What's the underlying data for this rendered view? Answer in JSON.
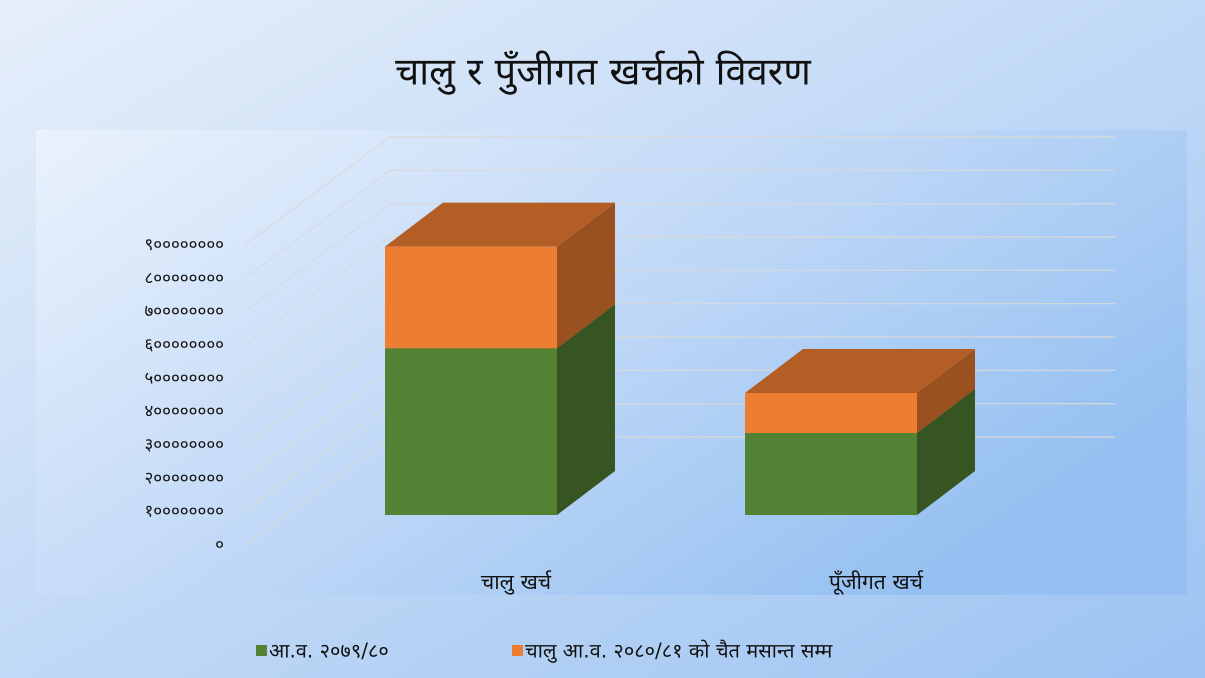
{
  "chart_data": {
    "type": "bar3d_stacked",
    "title": "चालु र पुँजीगत खर्चको विवरण",
    "categories": [
      "चालु खर्च",
      "पूँजीगत खर्च"
    ],
    "series": [
      {
        "name": "आ.व. २०७९/८०",
        "color": "#548235",
        "values": [
          500000000,
          246000000
        ]
      },
      {
        "name": "चालु आ.व. २०८०/८१ को चैत मसान्त सम्म",
        "color": "#ed7d31",
        "values": [
          305000000,
          120000000
        ]
      }
    ],
    "ylim": [
      0,
      900000000
    ],
    "yticks": [
      {
        "value": 0,
        "label": "०"
      },
      {
        "value": 100000000,
        "label": "१००००००००"
      },
      {
        "value": 200000000,
        "label": "२००००००००"
      },
      {
        "value": 300000000,
        "label": "३००००००००"
      },
      {
        "value": 400000000,
        "label": "४००००००००"
      },
      {
        "value": 500000000,
        "label": "५००००००००"
      },
      {
        "value": 600000000,
        "label": "६००००००००"
      },
      {
        "value": 700000000,
        "label": "७००००००००"
      },
      {
        "value": 800000000,
        "label": "८००००००००"
      },
      {
        "value": 900000000,
        "label": "९००००००००"
      }
    ],
    "grid": true,
    "legend": "bottom"
  }
}
